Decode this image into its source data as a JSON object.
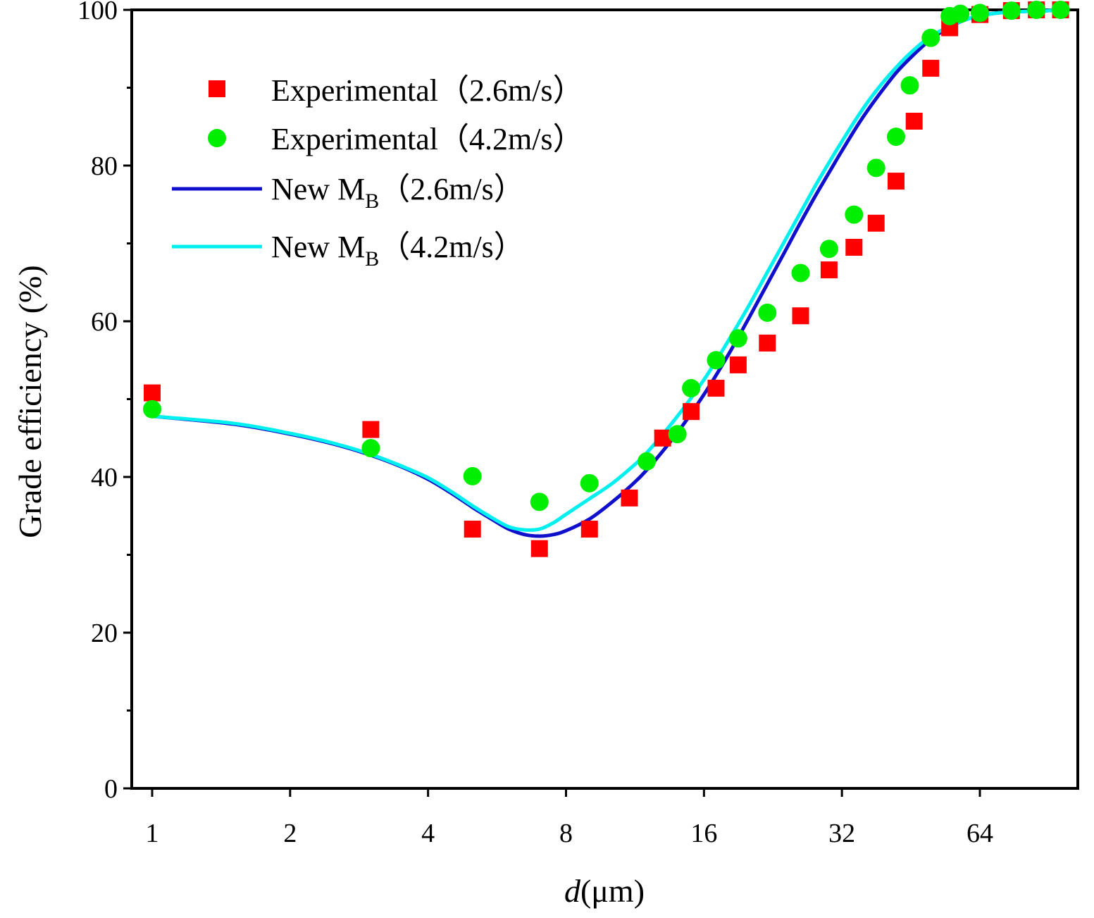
{
  "chart_data": {
    "type": "scatter",
    "xlabel_italic": "d",
    "xlabel_unit": "(μm)",
    "ylabel": "Grade efficiency (%)",
    "xscale": "log2",
    "xlim": [
      0.93,
      100
    ],
    "ylim": [
      0,
      100
    ],
    "xticks": [
      {
        "value": 1,
        "label": "1"
      },
      {
        "value": 2,
        "label": "2"
      },
      {
        "value": 4,
        "label": "4"
      },
      {
        "value": 8,
        "label": "8"
      },
      {
        "value": 16,
        "label": "16"
      },
      {
        "value": 32,
        "label": "32"
      },
      {
        "value": 64,
        "label": "64"
      }
    ],
    "yticks": [
      {
        "value": 0,
        "label": "0"
      },
      {
        "value": 20,
        "label": "20"
      },
      {
        "value": 40,
        "label": "40"
      },
      {
        "value": 60,
        "label": "60"
      },
      {
        "value": 80,
        "label": "80"
      },
      {
        "value": 100,
        "label": "100"
      }
    ],
    "yminor": [
      10,
      30,
      50,
      70,
      90
    ],
    "grid": false,
    "legend_position": "top-left",
    "series": [
      {
        "name": "Experimental（2.6m/s）",
        "kind": "scatter",
        "marker": "square",
        "color": "#ff0000",
        "x": [
          1,
          3,
          5,
          7,
          9,
          11,
          13,
          15,
          17,
          19,
          22,
          26,
          30,
          34,
          38,
          42,
          46,
          50,
          55,
          64,
          75,
          85,
          96
        ],
        "y": [
          50.8,
          46.1,
          33.3,
          30.8,
          33.3,
          37.3,
          45.0,
          48.4,
          51.4,
          54.4,
          57.2,
          60.7,
          66.6,
          69.5,
          72.6,
          78.0,
          85.7,
          92.5,
          97.7,
          99.4,
          99.9,
          100,
          100
        ]
      },
      {
        "name": "Experimental（4.2m/s）",
        "kind": "scatter",
        "marker": "circle",
        "color": "#00ee00",
        "x": [
          1,
          3,
          5,
          7,
          9,
          12,
          14,
          15,
          17,
          19,
          22,
          26,
          30,
          34,
          38,
          42,
          45,
          50,
          55,
          58,
          64,
          75,
          85,
          96
        ],
        "y": [
          48.7,
          43.7,
          40.1,
          36.8,
          39.2,
          42.0,
          45.5,
          51.4,
          55.0,
          57.8,
          61.1,
          66.2,
          69.3,
          73.7,
          79.7,
          83.7,
          90.3,
          96.4,
          99.2,
          99.5,
          99.6,
          99.9,
          100,
          100
        ]
      },
      {
        "name_main": "New M",
        "name_sub": "B",
        "name_tail": "（2.6m/s）",
        "kind": "line",
        "color": "#1010cc",
        "x": [
          1,
          1.5,
          2,
          2.5,
          3,
          3.5,
          4,
          4.5,
          5,
          5.5,
          6,
          6.5,
          7,
          7.5,
          8,
          9,
          10,
          11,
          12,
          14,
          16,
          18,
          20,
          22,
          24,
          26,
          28,
          30,
          32,
          35,
          38,
          42,
          46,
          50,
          55,
          60,
          65,
          70,
          80,
          90,
          96
        ],
        "y": [
          47.8,
          46.8,
          45.5,
          44.2,
          42.8,
          41.3,
          39.7,
          37.9,
          36.1,
          34.6,
          33.3,
          32.6,
          32.4,
          32.6,
          33.1,
          34.6,
          36.6,
          38.7,
          40.9,
          45.7,
          50.6,
          55.5,
          60.3,
          64.8,
          68.9,
          72.7,
          76.1,
          79.1,
          81.9,
          85.6,
          88.6,
          91.9,
          94.3,
          96.2,
          97.8,
          98.8,
          99.3,
          99.6,
          99.8,
          99.9,
          100
        ]
      },
      {
        "name_main": "New M",
        "name_sub": "B",
        "name_tail": "（4.2m/s）",
        "kind": "line",
        "color": "#00f0f0",
        "x": [
          1,
          1.5,
          2,
          2.5,
          3,
          3.5,
          4,
          4.5,
          5,
          5.5,
          6,
          6.5,
          7,
          7.5,
          8,
          9,
          10,
          11,
          12,
          14,
          16,
          18,
          20,
          22,
          24,
          26,
          28,
          30,
          32,
          35,
          38,
          42,
          46,
          50,
          55,
          60,
          65,
          70,
          80,
          90,
          96
        ],
        "y": [
          47.8,
          46.9,
          45.6,
          44.3,
          42.9,
          41.4,
          39.9,
          38.1,
          36.3,
          34.8,
          33.6,
          33.2,
          33.3,
          34.1,
          35.2,
          37.2,
          39.0,
          41.0,
          43.1,
          47.8,
          52.5,
          57.3,
          61.9,
          66.3,
          70.3,
          74.0,
          77.4,
          80.4,
          83.1,
          86.7,
          89.6,
          92.6,
          94.9,
          96.6,
          97.9,
          98.8,
          99.3,
          99.6,
          99.8,
          99.9,
          100
        ]
      }
    ]
  }
}
